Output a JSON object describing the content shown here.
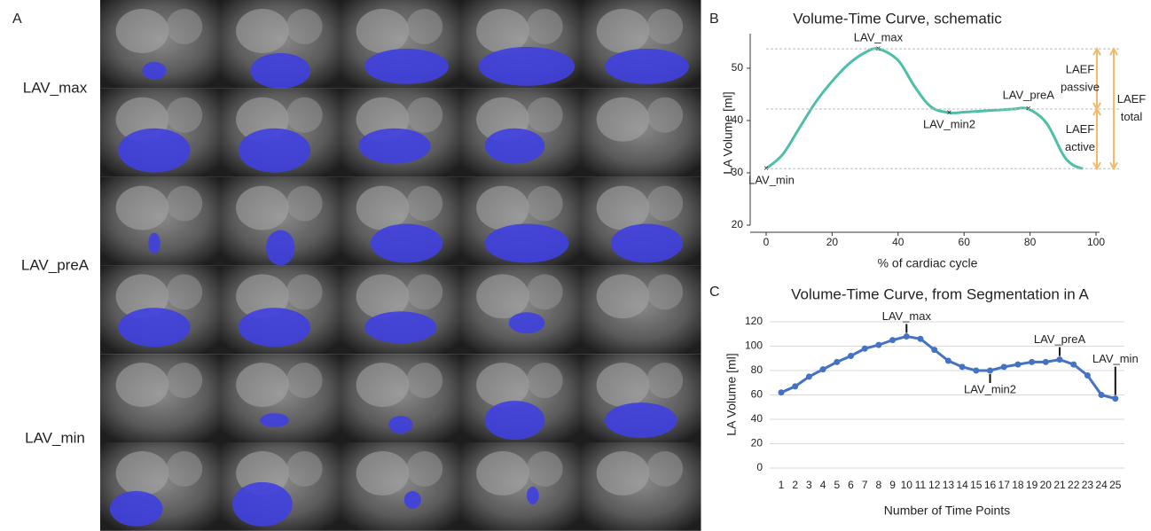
{
  "panel_a": {
    "label": "A",
    "row_labels": [
      "LAV_max",
      "LAV_preA",
      "LAV_min"
    ]
  },
  "chart_data": [
    {
      "type": "line",
      "panel": "B",
      "title": "Volume-Time Curve, schematic",
      "x_label": "% of cardiac cycle",
      "y_label": "LA Volume [ml]",
      "x": [
        0,
        5,
        10,
        15,
        20,
        25,
        30,
        34,
        40,
        45,
        50,
        55.5,
        60,
        65,
        70,
        75,
        79.5,
        85,
        90,
        93,
        96
      ],
      "values": [
        30.8,
        33.5,
        38.5,
        43.5,
        47.5,
        50.8,
        53,
        53.7,
        51.5,
        46.5,
        42.6,
        41.5,
        41.6,
        41.8,
        42,
        42.2,
        42.2,
        39.5,
        33.5,
        31.5,
        30.8
      ],
      "color": "#4dbfa9",
      "xlim": [
        0,
        100
      ],
      "ylim": [
        20,
        56.6
      ],
      "xticks": [
        0,
        20,
        40,
        60,
        80,
        100
      ],
      "yticks": [
        20,
        30,
        40,
        50
      ],
      "points": [
        {
          "label": "LAV_max",
          "x": 34,
          "y": 53.7
        },
        {
          "label": "LAV_min2",
          "x": 55.5,
          "y": 41.5
        },
        {
          "label": "LAV_preA",
          "x": 79.5,
          "y": 42.2
        },
        {
          "label": "LAV_min",
          "x": 0,
          "y": 30.8
        }
      ],
      "brackets": [
        {
          "lines": [
            "LAEF",
            "passive"
          ],
          "from": 42.2,
          "to": 53.7
        },
        {
          "lines": [
            "LAEF",
            "active"
          ],
          "from": 30.8,
          "to": 42.2
        },
        {
          "lines": [
            "LAEF",
            "total"
          ],
          "from": 30.8,
          "to": 53.7
        }
      ],
      "bracket_color": "#f5b96a"
    },
    {
      "type": "line",
      "panel": "C",
      "title": "Volume-Time Curve, from Segmentation in  A",
      "x_label": "Number of Time Points",
      "y_label": "LA Volume [ml]",
      "categories": [
        "1",
        "2",
        "3",
        "4",
        "5",
        "6",
        "7",
        "8",
        "9",
        "10",
        "11",
        "12",
        "13",
        "14",
        "15",
        "16",
        "17",
        "18",
        "19",
        "20",
        "21",
        "22",
        "23",
        "24",
        "25"
      ],
      "values": [
        62,
        67,
        75,
        81,
        87,
        92,
        98,
        101,
        105,
        108,
        106,
        97,
        88,
        83,
        80,
        80,
        83,
        85,
        87,
        87,
        89,
        85,
        76,
        60,
        57
      ],
      "color": "#4472c4",
      "ylim": [
        0,
        120
      ],
      "yticks": [
        0,
        20,
        40,
        60,
        80,
        100,
        120
      ],
      "grid": true,
      "annotations": [
        {
          "label": "LAV_max",
          "index": 9,
          "position": "above"
        },
        {
          "label": "LAV_min2",
          "index": 15,
          "position": "below"
        },
        {
          "label": "LAV_preA",
          "index": 20,
          "position": "above"
        },
        {
          "label": "LAV_min",
          "index": 24,
          "position": "above"
        }
      ]
    }
  ]
}
